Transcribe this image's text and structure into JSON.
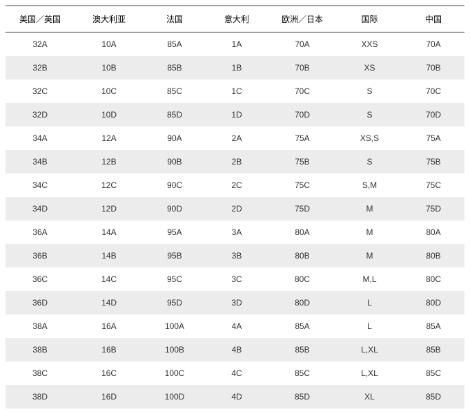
{
  "table": {
    "columns": [
      "美国／英国",
      "澳大利亚",
      "法国",
      "意大利",
      "欧洲／日本",
      "国际",
      "中国"
    ],
    "rows": [
      [
        "32A",
        "10A",
        "85A",
        "1A",
        "70A",
        "XXS",
        "70A"
      ],
      [
        "32B",
        "10B",
        "85B",
        "1B",
        "70B",
        "XS",
        "70B"
      ],
      [
        "32C",
        "10C",
        "85C",
        "1C",
        "70C",
        "S",
        "70C"
      ],
      [
        "32D",
        "10D",
        "85D",
        "1D",
        "70D",
        "S",
        "70D"
      ],
      [
        "34A",
        "12A",
        "90A",
        "2A",
        "75A",
        "XS,S",
        "75A"
      ],
      [
        "34B",
        "12B",
        "90B",
        "2B",
        "75B",
        "S",
        "75B"
      ],
      [
        "34C",
        "12C",
        "90C",
        "2C",
        "75C",
        "S,M",
        "75C"
      ],
      [
        "34D",
        "12D",
        "90D",
        "2D",
        "75D",
        "M",
        "75D"
      ],
      [
        "36A",
        "14A",
        "95A",
        "3A",
        "80A",
        "M",
        "80A"
      ],
      [
        "36B",
        "14B",
        "95B",
        "3B",
        "80B",
        "M",
        "80B"
      ],
      [
        "36C",
        "14C",
        "95C",
        "3C",
        "80C",
        "M,L",
        "80C"
      ],
      [
        "36D",
        "14D",
        "95D",
        "3D",
        "80D",
        "L",
        "80D"
      ],
      [
        "38A",
        "16A",
        "100A",
        "4A",
        "85A",
        "L",
        "85A"
      ],
      [
        "38B",
        "16B",
        "100B",
        "4B",
        "85B",
        "L,XL",
        "85B"
      ],
      [
        "38C",
        "16C",
        "100C",
        "4C",
        "85C",
        "L,XL",
        "85C"
      ],
      [
        "38D",
        "16D",
        "100D",
        "4D",
        "85D",
        "XL",
        "85D"
      ]
    ],
    "style": {
      "header_border_color": "#333333",
      "row_bg_odd": "#ffffff",
      "row_bg_even": "#ececec",
      "font_size": 12,
      "text_color": "#333333",
      "header_text_color": "#000000"
    }
  }
}
